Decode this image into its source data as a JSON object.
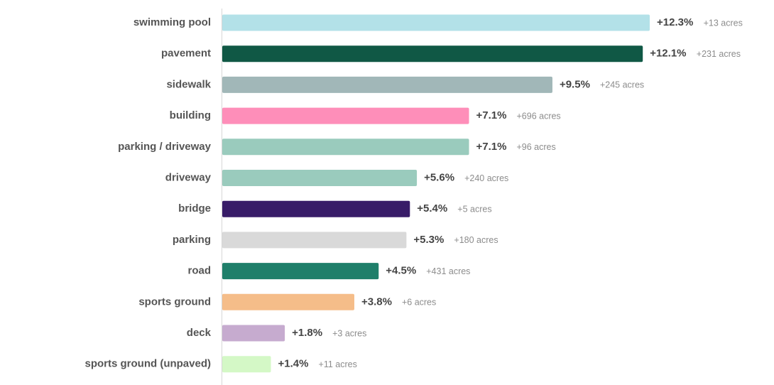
{
  "chart_data": {
    "type": "bar",
    "orientation": "horizontal",
    "value_unit": "%",
    "grid": false,
    "xlim": [
      0,
      12.3
    ],
    "categories": [
      "swimming pool",
      "pavement",
      "sidewalk",
      "building",
      "parking / driveway",
      "driveway",
      "bridge",
      "parking",
      "road",
      "sports ground",
      "deck",
      "sports ground (unpaved)"
    ],
    "values": [
      12.3,
      12.1,
      9.5,
      7.1,
      7.1,
      5.6,
      5.4,
      5.3,
      4.5,
      3.8,
      1.8,
      1.4
    ],
    "value_labels": [
      "+12.3%",
      "+12.1%",
      "+9.5%",
      "+7.1%",
      "+7.1%",
      "+5.6%",
      "+5.4%",
      "+5.3%",
      "+4.5%",
      "+3.8%",
      "+1.8%",
      "+1.4%"
    ],
    "acres_labels": [
      "+13 acres",
      "+231 acres",
      "+245 acres",
      "+696 acres",
      "+96 acres",
      "+240 acres",
      "+5 acres",
      "+180 acres",
      "+431 acres",
      "+6 acres",
      "+3 acres",
      "+11 acres"
    ],
    "colors": [
      "#b3e1e8",
      "#105845",
      "#a1b7b8",
      "#fe8eb9",
      "#9acbbd",
      "#9acbbd",
      "#381c68",
      "#d9d9d9",
      "#1f7f6a",
      "#f5bd89",
      "#c6abcf",
      "#d4f8c6"
    ]
  }
}
